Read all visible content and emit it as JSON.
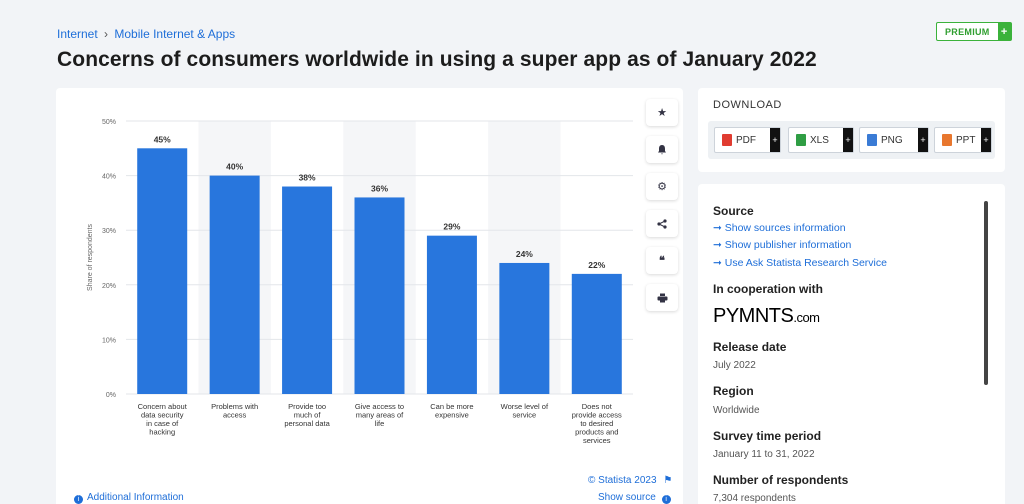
{
  "breadcrumb": {
    "item1": "Internet",
    "sep": "›",
    "item2": "Mobile Internet & Apps"
  },
  "premium": {
    "label": "PREMIUM",
    "plus": "+"
  },
  "page_title": "Concerns of consumers worldwide in using a super app as of January 2022",
  "chart_data": {
    "type": "bar",
    "title": "Concerns of consumers worldwide in using a super app as of January 2022",
    "xlabel": "",
    "ylabel": "Share of respondents",
    "ylim": [
      0,
      50
    ],
    "yticks": [
      "0%",
      "10%",
      "20%",
      "30%",
      "40%",
      "50%"
    ],
    "grid": true,
    "color": "#2876dd",
    "categories": [
      [
        "Concern about",
        "data security",
        "in case of",
        "hacking"
      ],
      [
        "Problems with",
        "access"
      ],
      [
        "Provide too",
        "much of",
        "personal data"
      ],
      [
        "Give access to",
        "many areas of",
        "life"
      ],
      [
        "Can be more",
        "expensive"
      ],
      [
        "Worse level of",
        "service"
      ],
      [
        "Does not",
        "provide access",
        "to desired",
        "products and",
        "services"
      ]
    ],
    "values": [
      45,
      40,
      38,
      36,
      29,
      24,
      22
    ],
    "labels": [
      "45%",
      "40%",
      "38%",
      "36%",
      "29%",
      "24%",
      "22%"
    ]
  },
  "chart_footer": {
    "credit": "© Statista 2023",
    "show_source": "Show source",
    "additional_info": "Additional Information"
  },
  "toolbar": {
    "icons": [
      "star-icon",
      "bell-icon",
      "gear-icon",
      "share-icon",
      "quote-icon",
      "print-icon"
    ]
  },
  "download": {
    "title": "DOWNLOAD",
    "buttons": [
      {
        "label": "PDF",
        "color": "#e03c31"
      },
      {
        "label": "XLS",
        "color": "#2f9e44"
      },
      {
        "label": "PNG",
        "color": "#3a7bd5"
      },
      {
        "label": "PPT",
        "color": "#e8772e"
      }
    ],
    "plus": "+"
  },
  "info": {
    "source_heading": "Source",
    "links": [
      "Show sources information",
      "Show publisher information",
      "Use Ask Statista Research Service"
    ],
    "arrow": "➞",
    "coop_heading": "In cooperation with",
    "coop_logo": "PYMNTS",
    "coop_logo_suffix": ".com",
    "release_heading": "Release date",
    "release_value": "July 2022",
    "region_heading": "Region",
    "region_value": "Worldwide",
    "survey_heading": "Survey time period",
    "survey_value": "January 11 to 31, 2022",
    "respondents_heading": "Number of respondents",
    "respondents_value": "7,304 respondents"
  }
}
